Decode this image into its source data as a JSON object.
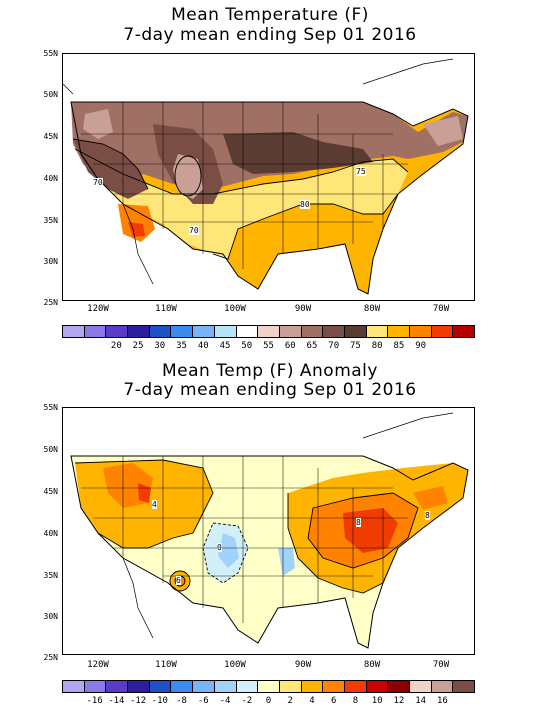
{
  "panels": [
    {
      "title_line1": "Mean Temperature (F)",
      "title_line2": "7-day mean ending Sep 01 2016",
      "lat_labels": [
        "55N",
        "50N",
        "45N",
        "40N",
        "35N",
        "30N",
        "25N"
      ],
      "lon_labels": [
        "120W",
        "110W",
        "100W",
        "90W",
        "80W",
        "70W"
      ],
      "contour_labels": [
        "70",
        "75",
        "70",
        "80"
      ],
      "colorbar_ticks": [
        "20",
        "25",
        "30",
        "35",
        "40",
        "45",
        "50",
        "55",
        "60",
        "65",
        "70",
        "75",
        "80",
        "85",
        "90"
      ],
      "colorbar_colors": [
        "#b3a6f0",
        "#8c78e6",
        "#5a3cc8",
        "#2d1e9b",
        "#1e50c8",
        "#3c8cf0",
        "#78b4fa",
        "#b4e6fa",
        "#ffffff",
        "#f0d2c8",
        "#c8a096",
        "#a07064",
        "#7a4e44",
        "#5a3c32",
        "#ffe678",
        "#ffb400",
        "#ff8200",
        "#f03c00",
        "#b40000"
      ]
    },
    {
      "title_line1": "Mean Temp (F) Anomaly",
      "title_line2": "7-day mean ending Sep 01 2016",
      "lat_labels": [
        "55N",
        "50N",
        "45N",
        "40N",
        "35N",
        "30N",
        "25N"
      ],
      "lon_labels": [
        "120W",
        "110W",
        "100W",
        "90W",
        "80W",
        "70W"
      ],
      "contour_labels": [
        "4",
        "8",
        "8",
        "0",
        "6"
      ],
      "colorbar_ticks": [
        "-16",
        "-14",
        "-12",
        "-10",
        "-8",
        "-6",
        "-4",
        "-2",
        "0",
        "2",
        "4",
        "6",
        "8",
        "10",
        "12",
        "14",
        "16"
      ],
      "colorbar_colors": [
        "#b3a6f0",
        "#8c78e6",
        "#5a3cc8",
        "#2d1e9b",
        "#1e50c8",
        "#3c8cf0",
        "#78b4fa",
        "#a0d2fa",
        "#d2f0fa",
        "#ffffc8",
        "#ffe678",
        "#ffb400",
        "#ff8200",
        "#f03c00",
        "#c80000",
        "#8c0000",
        "#f0d2c8",
        "#c8a096",
        "#7a4e44"
      ]
    }
  ]
}
